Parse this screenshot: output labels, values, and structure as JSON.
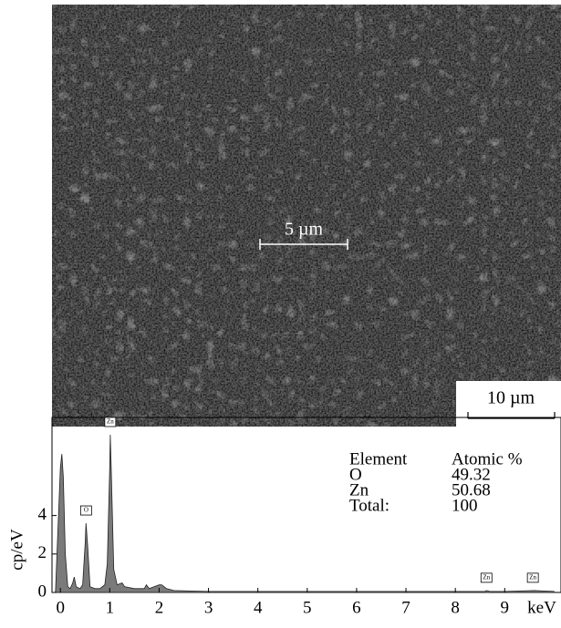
{
  "image": {
    "scale_bars": [
      "5 µm",
      "10 µm"
    ]
  },
  "composition": {
    "header": [
      "Element",
      "Atomic %"
    ],
    "rows": [
      [
        "O",
        "49.32"
      ],
      [
        "Zn",
        "50.68"
      ],
      [
        "Total:",
        "100"
      ]
    ]
  },
  "chart_data": {
    "type": "area",
    "y_label": "cp/eV",
    "x_label": "keV",
    "color": "#7a7a7a",
    "x": [
      -0.1,
      0,
      0.03,
      0.06,
      0.1,
      0.15,
      0.2,
      0.25,
      0.28,
      0.32,
      0.4,
      0.45,
      0.5,
      0.52,
      0.55,
      0.6,
      0.7,
      0.8,
      0.9,
      0.95,
      1.0,
      1.01,
      1.03,
      1.08,
      1.15,
      1.25,
      1.3,
      1.5,
      1.7,
      1.74,
      1.8,
      2.0,
      2.05,
      2.15,
      2.3,
      3,
      4,
      5,
      6,
      7,
      8,
      8.6,
      8.63,
      8.7,
      9,
      9.6,
      10
    ],
    "values": [
      0,
      6.5,
      7.2,
      6.0,
      2.0,
      0.3,
      0.2,
      0.5,
      0.8,
      0.3,
      0.2,
      0.4,
      2.5,
      3.6,
      2.5,
      0.3,
      0.2,
      0.2,
      0.4,
      1.5,
      6.5,
      8.2,
      6.5,
      1.2,
      0.4,
      0.5,
      0.3,
      0.2,
      0.2,
      0.4,
      0.2,
      0.4,
      0.4,
      0.2,
      0.1,
      0.05,
      0.05,
      0.05,
      0.05,
      0.05,
      0.05,
      0.05,
      0.1,
      0.05,
      0.05,
      0.1,
      0.05
    ],
    "xlim": [
      -0.17,
      10.14
    ],
    "ylim": [
      0,
      9.1
    ],
    "xticks": [
      0,
      1,
      2,
      3,
      4,
      5,
      6,
      7,
      8,
      9
    ],
    "yticks": [
      0,
      2,
      4
    ],
    "annotations": [
      {
        "text": "Zn",
        "x": 1.01,
        "y": 8.2
      },
      {
        "text": "O",
        "x": 0.52,
        "y": 3.6
      },
      {
        "text": "Zn",
        "x": 8.63,
        "y": 0.1
      },
      {
        "text": "Zn",
        "x": 9.57,
        "y": 0.1
      }
    ]
  }
}
